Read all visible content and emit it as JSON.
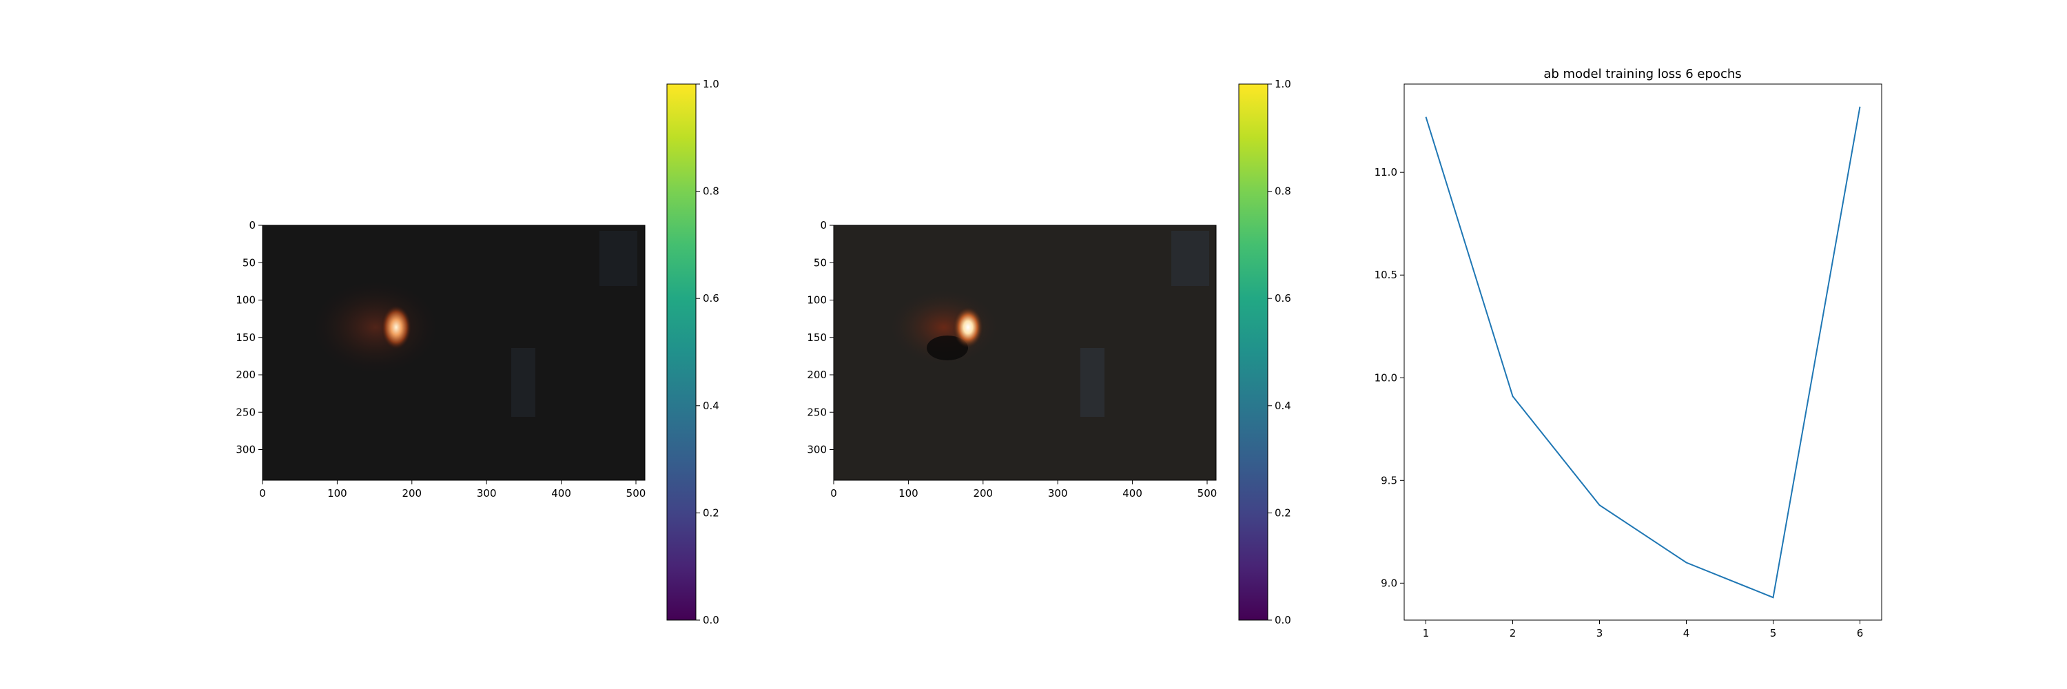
{
  "chart_data": [
    {
      "type": "image",
      "panel": "input",
      "description_label": "",
      "x_ticks": [
        0,
        100,
        200,
        300,
        400,
        500
      ],
      "y_ticks": [
        0,
        50,
        100,
        150,
        200,
        250,
        300
      ],
      "xlim": [
        0,
        512
      ],
      "ylim": [
        341,
        0
      ],
      "colorbar": {
        "cmap": "viridis",
        "ticks": [
          0.0,
          0.2,
          0.4,
          0.6,
          0.8,
          1.0
        ],
        "tick_labels": [
          "0.0",
          "0.2",
          "0.4",
          "0.6",
          "0.8",
          "1.0"
        ],
        "range": [
          0,
          1
        ]
      }
    },
    {
      "type": "image",
      "panel": "output",
      "x_ticks": [
        0,
        100,
        200,
        300,
        400,
        500
      ],
      "y_ticks": [
        0,
        50,
        100,
        150,
        200,
        250,
        300
      ],
      "xlim": [
        0,
        512
      ],
      "ylim": [
        341,
        0
      ],
      "colorbar": {
        "cmap": "viridis",
        "ticks": [
          0.0,
          0.2,
          0.4,
          0.6,
          0.8,
          1.0
        ],
        "tick_labels": [
          "0.0",
          "0.2",
          "0.4",
          "0.6",
          "0.8",
          "1.0"
        ],
        "range": [
          0,
          1
        ]
      }
    },
    {
      "type": "line",
      "title": "ab model training loss 6 epochs",
      "x": [
        1,
        2,
        3,
        4,
        5,
        6
      ],
      "series": [
        {
          "values": [
            11.27,
            9.91,
            9.38,
            9.1,
            8.93,
            11.32
          ]
        }
      ],
      "xlim": [
        0.75,
        6.25
      ],
      "ylim": [
        8.82,
        11.43
      ],
      "x_ticks": [
        1,
        2,
        3,
        4,
        5,
        6
      ],
      "y_ticks": [
        9.0,
        9.5,
        10.0,
        10.5,
        11.0
      ],
      "y_tick_labels": [
        "9.0",
        "9.5",
        "10.0",
        "10.5",
        "11.0"
      ],
      "line_color": "#1f77b4"
    }
  ],
  "colors": {
    "line": "#1f77b4",
    "image_bg": "#161616",
    "axis": "#000000"
  }
}
